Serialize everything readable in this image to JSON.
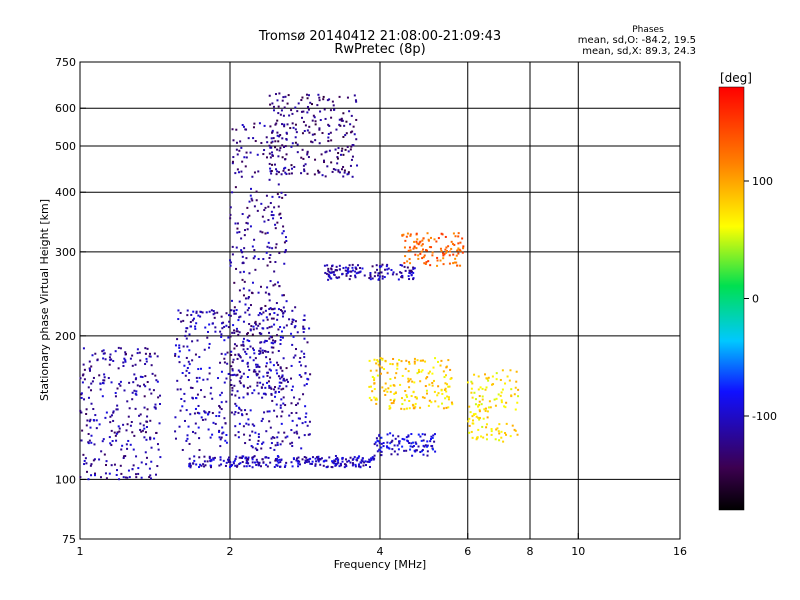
{
  "chart_data": {
    "type": "scatter",
    "title": "Tromsø 20140412 21:08:00-21:09:43",
    "subtitle": "RwPretec (8p)",
    "xlabel": "Frequency [MHz]",
    "ylabel": "Stationary phase Virtual Height [km]",
    "x_scale": "log",
    "y_scale": "log",
    "xlim": [
      1,
      16
    ],
    "ylim": [
      75,
      750
    ],
    "x_ticks": [
      1,
      2,
      4,
      6,
      8,
      10,
      16
    ],
    "x_tick_labels": [
      "1",
      "2",
      "4",
      "6",
      "8",
      "10",
      "16"
    ],
    "y_ticks": [
      75,
      100,
      200,
      300,
      400,
      500,
      600,
      750
    ],
    "y_tick_labels": [
      "75",
      "100",
      "200",
      "300",
      "400",
      "500",
      "600",
      "750"
    ],
    "grid": true,
    "phases_box": {
      "heading": "Phases",
      "line_o": "mean, sd,O: -84.2, 19.5",
      "line_x": "mean, sd,X: 89.3, 24.3"
    },
    "colorbar": {
      "label": "[deg]",
      "range": [
        -180,
        180
      ],
      "ticks": [
        100,
        0,
        -100
      ],
      "tick_labels": [
        "100",
        "0",
        "-100"
      ],
      "colormap": "rainbow (black-purple-blue-cyan-green-yellow-orange-red)"
    },
    "traces": [
      {
        "desc": "lower E-layer trace",
        "x_range": [
          1.65,
          3.9
        ],
        "h_range": [
          106,
          112
        ],
        "phase": -105
      },
      {
        "desc": "E trace curving up",
        "x_range": [
          3.9,
          5.2
        ],
        "h_range": [
          112,
          125
        ],
        "phase": -95
      },
      {
        "desc": "low-frequency echoes",
        "x_range": [
          1.0,
          1.45
        ],
        "h_range": [
          100,
          190
        ],
        "phase": -115
      },
      {
        "desc": "main O-mode F cluster",
        "x_range": [
          1.55,
          2.9
        ],
        "h_range": [
          115,
          230
        ],
        "phase": -110
      },
      {
        "desc": "F ascending column",
        "x_range": [
          2.0,
          2.6
        ],
        "h_range": [
          150,
          560
        ],
        "phase": -120
      },
      {
        "desc": "upper F curved trace",
        "x_range": [
          2.4,
          3.6
        ],
        "h_range": [
          430,
          650
        ],
        "phase": -130
      },
      {
        "desc": "O-mode band near 270 km",
        "x_range": [
          3.1,
          4.7
        ],
        "h_range": [
          262,
          282
        ],
        "phase": -110
      },
      {
        "desc": "X-mode cluster",
        "x_range": [
          3.8,
          5.6
        ],
        "h_range": [
          140,
          180
        ],
        "phase": 80
      },
      {
        "desc": "X-mode cluster high",
        "x_range": [
          4.4,
          5.9
        ],
        "h_range": [
          280,
          330
        ],
        "phase": 130
      },
      {
        "desc": "X-mode echoes",
        "x_range": [
          6.0,
          7.6
        ],
        "h_range": [
          120,
          170
        ],
        "phase": 75
      }
    ]
  }
}
